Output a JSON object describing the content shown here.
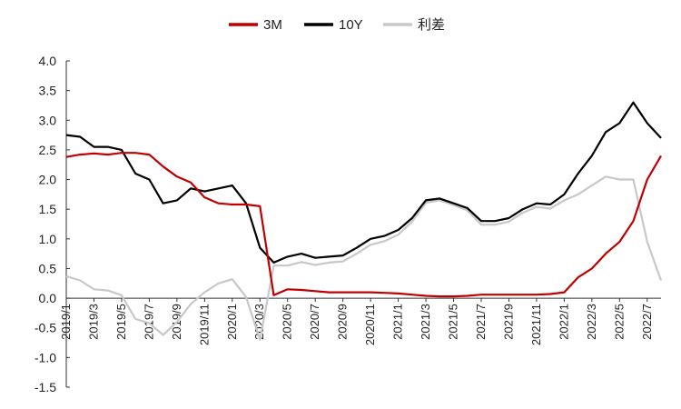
{
  "chart_data": {
    "type": "line",
    "title": "",
    "xlabel": "",
    "ylabel": "",
    "ylim": [
      -1.5,
      4.0
    ],
    "yticks": [
      "4.0",
      "3.5",
      "3.0",
      "2.5",
      "2.0",
      "1.5",
      "1.0",
      "0.5",
      "0.0",
      "-0.5",
      "-1.0",
      "-1.5"
    ],
    "yticks_values": [
      4.0,
      3.5,
      3.0,
      2.5,
      2.0,
      1.5,
      1.0,
      0.5,
      0.0,
      -0.5,
      -1.0,
      -1.5
    ],
    "xticks": [
      "2019/1",
      "2019/3",
      "2019/5",
      "2019/7",
      "2019/9",
      "2019/11",
      "2020/1",
      "2020/3",
      "2020/5",
      "2020/7",
      "2020/9",
      "2020/11",
      "2021/1",
      "2021/3",
      "2021/5",
      "2021/7",
      "2021/9",
      "2021/11",
      "2022/1",
      "2022/3",
      "2022/5",
      "2022/7"
    ],
    "xlim": [
      "2019/1",
      "2022/8"
    ],
    "legend_position": "top-center",
    "grid": false,
    "x": [
      "2019/1",
      "2019/2",
      "2019/3",
      "2019/4",
      "2019/5",
      "2019/6",
      "2019/7",
      "2019/8",
      "2019/9",
      "2019/10",
      "2019/11",
      "2019/12",
      "2020/1",
      "2020/2",
      "2020/3",
      "2020/4",
      "2020/5",
      "2020/6",
      "2020/7",
      "2020/8",
      "2020/9",
      "2020/10",
      "2020/11",
      "2020/12",
      "2021/1",
      "2021/2",
      "2021/3",
      "2021/4",
      "2021/5",
      "2021/6",
      "2021/7",
      "2021/8",
      "2021/9",
      "2021/10",
      "2021/11",
      "2021/12",
      "2022/1",
      "2022/2",
      "2022/3",
      "2022/4",
      "2022/5",
      "2022/6",
      "2022/7",
      "2022/8"
    ],
    "series": [
      {
        "name": "3M",
        "color": "#c00000",
        "values": [
          2.38,
          2.42,
          2.44,
          2.42,
          2.45,
          2.45,
          2.42,
          2.22,
          2.05,
          1.95,
          1.7,
          1.6,
          1.58,
          1.58,
          1.55,
          0.05,
          0.15,
          0.14,
          0.12,
          0.1,
          0.1,
          0.1,
          0.1,
          0.09,
          0.08,
          0.06,
          0.04,
          0.03,
          0.03,
          0.04,
          0.06,
          0.06,
          0.06,
          0.06,
          0.06,
          0.07,
          0.1,
          0.35,
          0.5,
          0.75,
          0.95,
          1.3,
          2.0,
          2.4
        ]
      },
      {
        "name": "10Y",
        "color": "#000000",
        "values": [
          2.75,
          2.72,
          2.55,
          2.55,
          2.5,
          2.1,
          2.0,
          1.6,
          1.65,
          1.85,
          1.8,
          1.85,
          1.9,
          1.6,
          0.85,
          0.6,
          0.7,
          0.75,
          0.68,
          0.7,
          0.72,
          0.85,
          1.0,
          1.05,
          1.15,
          1.35,
          1.65,
          1.68,
          1.6,
          1.52,
          1.3,
          1.3,
          1.35,
          1.5,
          1.6,
          1.58,
          1.75,
          2.1,
          2.4,
          2.8,
          2.95,
          3.3,
          2.95,
          2.7
        ]
      },
      {
        "name": "利差",
        "color": "#c8c8c8",
        "values": [
          0.37,
          0.3,
          0.15,
          0.13,
          0.05,
          -0.35,
          -0.42,
          -0.62,
          -0.4,
          -0.1,
          0.1,
          0.25,
          0.32,
          0.02,
          -0.7,
          0.55,
          0.55,
          0.61,
          0.56,
          0.6,
          0.62,
          0.75,
          0.9,
          0.96,
          1.07,
          1.29,
          1.61,
          1.65,
          1.57,
          1.48,
          1.24,
          1.24,
          1.29,
          1.44,
          1.54,
          1.51,
          1.65,
          1.75,
          1.9,
          2.05,
          2.0,
          2.0,
          0.95,
          0.3
        ]
      }
    ]
  }
}
